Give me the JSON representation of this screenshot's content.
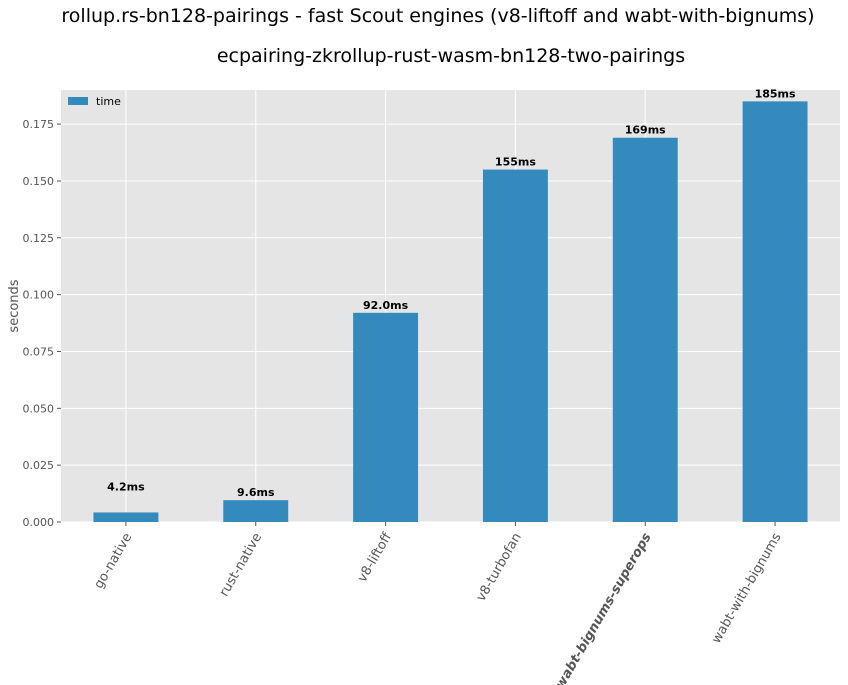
{
  "chart_data": {
    "type": "bar",
    "suptitle": "rollup.rs-bn128-pairings - fast Scout engines (v8-liftoff and wabt-with-bignums)",
    "title": "ecpairing-zkrollup-rust-wasm-bn128-two-pairings",
    "xlabel": "",
    "ylabel": "seconds",
    "ylim": [
      0,
      0.19
    ],
    "yticks": [
      "0.000",
      "0.025",
      "0.050",
      "0.075",
      "0.100",
      "0.125",
      "0.150",
      "0.175"
    ],
    "grid": true,
    "legend_position": "top-left",
    "series": [
      {
        "name": "time",
        "color": "#348ABD",
        "values": [
          0.0042,
          0.0096,
          0.092,
          0.155,
          0.169,
          0.185
        ],
        "labels": [
          "4.2ms",
          "9.6ms",
          "92.0ms",
          "155ms",
          "169ms",
          "185ms"
        ]
      }
    ],
    "categories": [
      "go-native",
      "rust-native",
      "v8-liftoff",
      "v8-turbofan",
      "wabt-bignums-superops",
      "wabt-with-bignums"
    ],
    "highlighted_category": "wabt-bignums-superops",
    "highlight_color": "#2ca02c",
    "background_color": "#E5E5E5",
    "grid_color": "#FFFFFF"
  }
}
